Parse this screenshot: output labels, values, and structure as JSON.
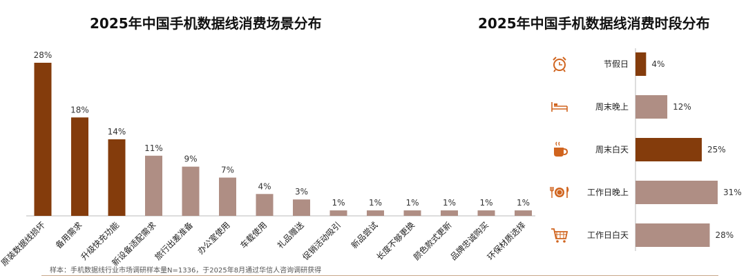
{
  "note": "样本：手机数据线行业市场调研样本量N=1336，于2025年8月通过华信人咨询调研获得",
  "colors": {
    "dark": "#843C0C",
    "light": "#AF8E84",
    "icon": "#D0641E"
  },
  "chart_data": [
    {
      "type": "bar",
      "title": "2025年中国手机数据线消费场景分布",
      "categories": [
        "原装数据线损坏",
        "备用需求",
        "升级快充功能",
        "新设备适配需求",
        "旅行出差准备",
        "办公室使用",
        "车载使用",
        "礼品赠送",
        "促销活动吸引",
        "新品尝试",
        "长度不够更换",
        "颜色款式更新",
        "品牌忠诚购买",
        "环保材质选择"
      ],
      "values": [
        28,
        18,
        14,
        11,
        9,
        7,
        4,
        3,
        1,
        1,
        1,
        1,
        1,
        1
      ],
      "value_labels": [
        "28%",
        "18%",
        "14%",
        "11%",
        "9%",
        "7%",
        "4%",
        "3%",
        "1%",
        "1%",
        "1%",
        "1%",
        "1%",
        "1%"
      ],
      "highlight": [
        true,
        true,
        true,
        false,
        false,
        false,
        false,
        false,
        false,
        false,
        false,
        false,
        false,
        false
      ],
      "unit": "%",
      "ylim": [
        0,
        28
      ]
    },
    {
      "type": "bar",
      "orientation": "horizontal",
      "title": "2025年中国手机数据线消费时段分布",
      "categories": [
        "节假日",
        "周末晚上",
        "周末白天",
        "工作日晚上",
        "工作日白天"
      ],
      "values": [
        4,
        12,
        25,
        31,
        28
      ],
      "value_labels": [
        "4%",
        "12%",
        "25%",
        "31%",
        "28%"
      ],
      "highlight": [
        true,
        false,
        true,
        false,
        false
      ],
      "icons": [
        "alarm-clock-icon",
        "bed-icon",
        "coffee-cup-icon",
        "plate-cutlery-icon",
        "shopping-cart-icon"
      ],
      "unit": "%",
      "xlim": [
        0,
        31
      ]
    }
  ]
}
